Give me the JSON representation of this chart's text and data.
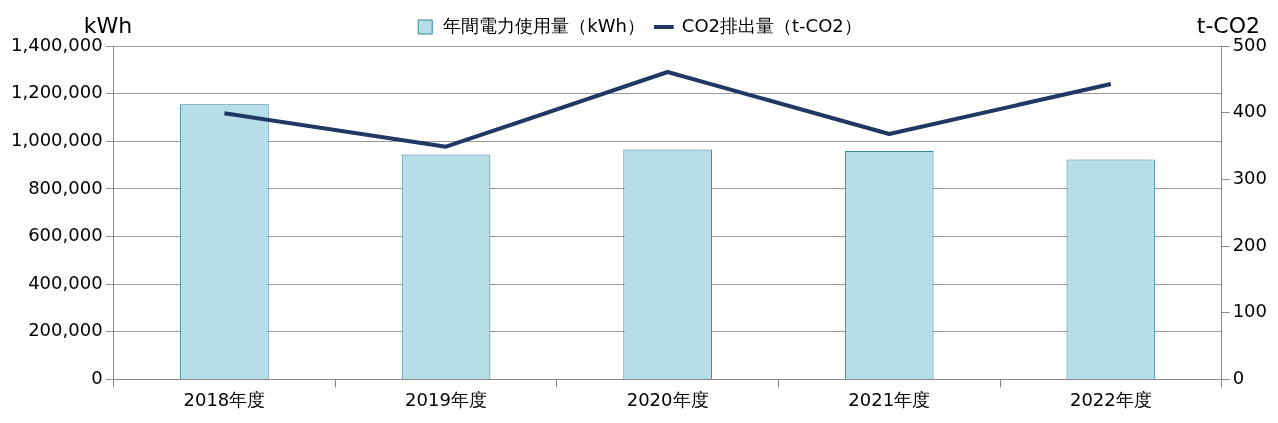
{
  "chart_data": {
    "type": "bar",
    "ylabel": "kWh",
    "y2label": "t-CO2",
    "categories": [
      "2018年度",
      "2019年度",
      "2020年度",
      "2021年度",
      "2022年度"
    ],
    "series": [
      {
        "name": "年間電力使用量（kWh）",
        "type": "bar",
        "color": "#b7dde8",
        "values": [
          1155000,
          944000,
          965000,
          959000,
          923000
        ]
      },
      {
        "name": "CO2排出量（t-CO2）",
        "type": "line",
        "axis": "y2",
        "color": "#1f3864",
        "values": [
          399,
          349,
          461,
          368,
          443
        ]
      }
    ],
    "ylim": [
      0,
      1400000
    ],
    "yticks": [
      0,
      {
        "value": 200000,
        "label": "200,000"
      },
      {
        "value": 400000,
        "label": "400,000"
      },
      {
        "value": 600000,
        "label": "600,000"
      },
      {
        "value": 800000,
        "label": "800,000"
      },
      {
        "value": 1000000,
        "label": "1,000,000"
      },
      {
        "value": 1200000,
        "label": "1,200,000"
      },
      {
        "value": 1400000,
        "label": "1,400,000"
      }
    ],
    "y2lim": [
      0,
      500
    ],
    "y2ticks": [
      0,
      100,
      200,
      300,
      400,
      500
    ],
    "grid": "y",
    "legend": "top",
    "marker": "none"
  }
}
